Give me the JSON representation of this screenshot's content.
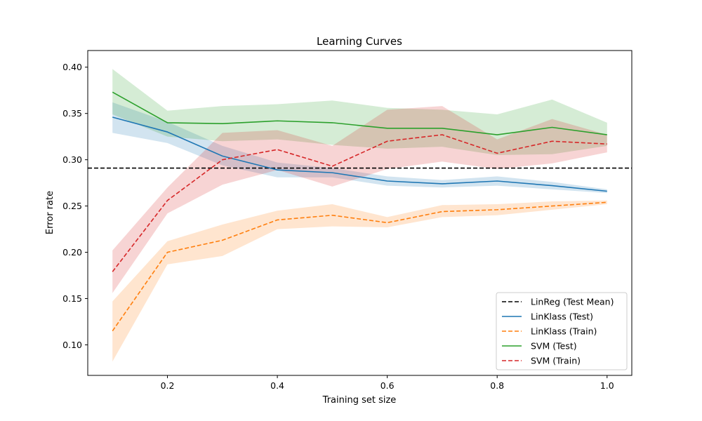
{
  "chart_data": {
    "type": "line",
    "title": "Learning Curves",
    "xlabel": "Training set size",
    "ylabel": "Error rate",
    "xlim": [
      0.055,
      1.045
    ],
    "ylim": [
      0.067,
      0.418
    ],
    "x_ticks": [
      0.2,
      0.4,
      0.6,
      0.8,
      1.0
    ],
    "x_tick_labels": [
      "0.2",
      "0.4",
      "0.6",
      "0.8",
      "1.0"
    ],
    "y_ticks": [
      0.1,
      0.15,
      0.2,
      0.25,
      0.3,
      0.35,
      0.4
    ],
    "y_tick_labels": [
      "0.10",
      "0.15",
      "0.20",
      "0.25",
      "0.30",
      "0.35",
      "0.40"
    ],
    "grid": false,
    "legend_position": "lower-right",
    "x": [
      0.1,
      0.2,
      0.3,
      0.4,
      0.5,
      0.6,
      0.7,
      0.8,
      0.9,
      1.0
    ],
    "hline": {
      "name": "LinReg (Test Mean)",
      "y": 0.291,
      "color": "#000000",
      "dashed": true
    },
    "series": [
      {
        "name": "LinKlass (Test)",
        "color": "#1f77b4",
        "dashed": false,
        "values": [
          0.346,
          0.33,
          0.304,
          0.289,
          0.286,
          0.277,
          0.274,
          0.277,
          0.272,
          0.266
        ],
        "lower": [
          0.329,
          0.318,
          0.294,
          0.281,
          0.281,
          0.272,
          0.27,
          0.272,
          0.268,
          0.264
        ],
        "upper": [
          0.362,
          0.341,
          0.315,
          0.297,
          0.291,
          0.282,
          0.278,
          0.282,
          0.276,
          0.268
        ]
      },
      {
        "name": "LinKlass (Train)",
        "color": "#ff7f0e",
        "dashed": true,
        "values": [
          0.115,
          0.2,
          0.213,
          0.235,
          0.24,
          0.232,
          0.244,
          0.246,
          0.25,
          0.254
        ],
        "lower": [
          0.082,
          0.187,
          0.196,
          0.225,
          0.228,
          0.227,
          0.238,
          0.24,
          0.246,
          0.252
        ],
        "upper": [
          0.147,
          0.212,
          0.23,
          0.245,
          0.252,
          0.238,
          0.251,
          0.252,
          0.255,
          0.256
        ]
      },
      {
        "name": "SVM (Test)",
        "color": "#2ca02c",
        "dashed": false,
        "values": [
          0.373,
          0.34,
          0.339,
          0.342,
          0.34,
          0.334,
          0.334,
          0.327,
          0.335,
          0.327
        ],
        "lower": [
          0.349,
          0.325,
          0.32,
          0.322,
          0.316,
          0.312,
          0.314,
          0.305,
          0.306,
          0.315
        ],
        "upper": [
          0.398,
          0.353,
          0.358,
          0.36,
          0.364,
          0.356,
          0.354,
          0.349,
          0.365,
          0.34
        ]
      },
      {
        "name": "SVM (Train)",
        "color": "#d62728",
        "dashed": true,
        "values": [
          0.179,
          0.256,
          0.3,
          0.311,
          0.293,
          0.32,
          0.327,
          0.307,
          0.32,
          0.317
        ],
        "lower": [
          0.156,
          0.242,
          0.273,
          0.289,
          0.271,
          0.29,
          0.298,
          0.29,
          0.296,
          0.308
        ],
        "upper": [
          0.202,
          0.27,
          0.329,
          0.332,
          0.315,
          0.354,
          0.358,
          0.322,
          0.344,
          0.327
        ]
      }
    ]
  }
}
